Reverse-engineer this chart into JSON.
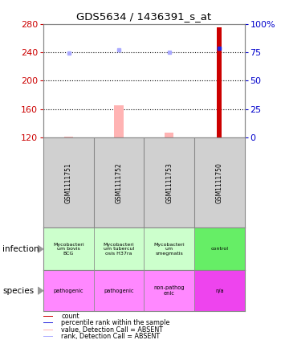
{
  "title": "GDS5634 / 1436391_s_at",
  "samples": [
    "GSM1111751",
    "GSM1111752",
    "GSM1111753",
    "GSM1111750"
  ],
  "left_ylim": [
    120,
    280
  ],
  "left_yticks": [
    120,
    160,
    200,
    240,
    280
  ],
  "right_ylim": [
    0,
    100
  ],
  "right_yticks": [
    0,
    25,
    50,
    75,
    100
  ],
  "right_yticklabels": [
    "0",
    "25",
    "50",
    "75",
    "100%"
  ],
  "bar_values": [
    null,
    null,
    null,
    275
  ],
  "bar_color": "#cc0000",
  "absent_bar_values": [
    122,
    165,
    127,
    null
  ],
  "absent_bar_color": "#ffb3b3",
  "rank_dots": [
    239,
    243,
    240,
    246
  ],
  "rank_dot_colors": [
    "#aaaaff",
    "#aaaaff",
    "#aaaaff",
    "#2222dd"
  ],
  "infection_labels": [
    "Mycobacteri\num bovis\nBCG",
    "Mycobacteri\num tubercul\nosis H37ra",
    "Mycobacteri\num\nsmegmatis",
    "control"
  ],
  "infection_colors": [
    "#ccffcc",
    "#ccffcc",
    "#ccffcc",
    "#66ee66"
  ],
  "species_labels": [
    "pathogenic",
    "pathogenic",
    "non-pathog\nenic",
    "n/a"
  ],
  "species_colors": [
    "#ff88ff",
    "#ff88ff",
    "#ff88ff",
    "#ee44ee"
  ],
  "legend_items": [
    {
      "color": "#cc0000",
      "label": "count"
    },
    {
      "color": "#2222dd",
      "label": "percentile rank within the sample"
    },
    {
      "color": "#ffb3b3",
      "label": "value, Detection Call = ABSENT"
    },
    {
      "color": "#aaaaff",
      "label": "rank, Detection Call = ABSENT"
    }
  ],
  "left_tick_color": "#cc0000",
  "right_tick_color": "#0000cc",
  "background_color": "#ffffff",
  "plot_bg_color": "#ffffff",
  "grid_color": "#000000",
  "sample_bg_color": "#d0d0d0",
  "table_border_color": "#888888",
  "arrow_color": "#999999"
}
